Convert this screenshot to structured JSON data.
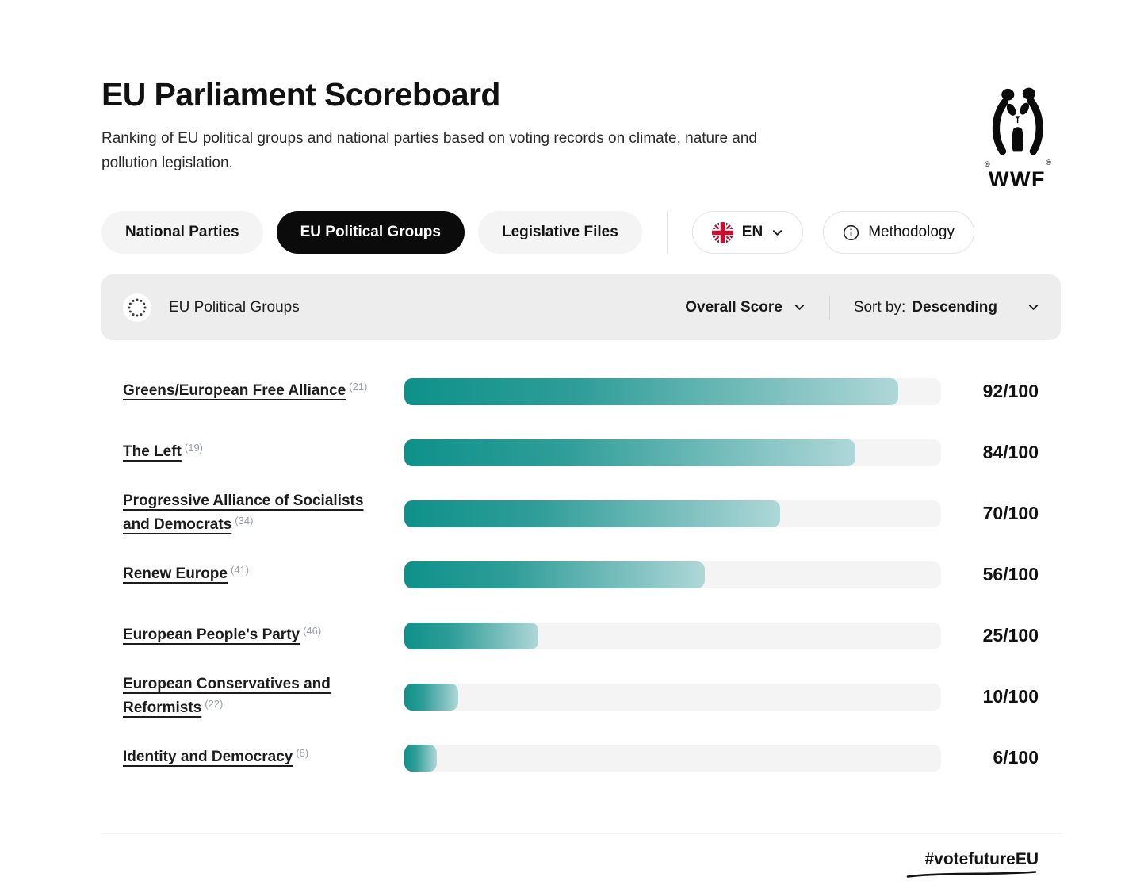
{
  "header": {
    "title": "EU Parliament Scoreboard",
    "subtitle": "Ranking of EU political groups and national parties based on voting records on climate, nature and pollution legislation.",
    "logo_text": "WWF",
    "logo_registered_mark": "®"
  },
  "tabs": [
    {
      "label": "National Parties",
      "active": false
    },
    {
      "label": "EU Political Groups",
      "active": true
    },
    {
      "label": "Legislative Files",
      "active": false
    }
  ],
  "controls": {
    "language_label": "EN",
    "methodology_label": "Methodology"
  },
  "filter_bar": {
    "title": "EU Political Groups",
    "score_selector": "Overall Score",
    "sort_label": "Sort by:",
    "sort_value": "Descending"
  },
  "rows": [
    {
      "name": "Greens/European Free Alliance",
      "count": "(21)",
      "score": 92,
      "score_label": "92/100"
    },
    {
      "name": "The Left",
      "count": "(19)",
      "score": 84,
      "score_label": "84/100"
    },
    {
      "name": "Progressive Alliance of Socialists and Democrats",
      "count": "(34)",
      "score": 70,
      "score_label": "70/100"
    },
    {
      "name": "Renew Europe",
      "count": "(41)",
      "score": 56,
      "score_label": "56/100"
    },
    {
      "name": "European People's Party",
      "count": "(46)",
      "score": 25,
      "score_label": "25/100"
    },
    {
      "name": "European Conservatives and Reformists",
      "count": "(22)",
      "score": 10,
      "score_label": "10/100"
    },
    {
      "name": "Identity and Democracy",
      "count": "(8)",
      "score": 6,
      "score_label": "6/100"
    }
  ],
  "chart_data": {
    "type": "bar",
    "title": "EU Parliament Scoreboard — EU Political Groups, Overall Score",
    "categories": [
      "Greens/European Free Alliance",
      "The Left",
      "Progressive Alliance of Socialists and Democrats",
      "Renew Europe",
      "European People's Party",
      "European Conservatives and Reformists",
      "Identity and Democracy"
    ],
    "values": [
      92,
      84,
      70,
      56,
      25,
      10,
      6
    ],
    "value_suffix": "/100",
    "xlabel": "",
    "ylabel": "",
    "xlim": [
      0,
      100
    ],
    "sort": "Descending",
    "grid": false,
    "orientation": "horizontal"
  },
  "footer": {
    "hashtag": "#votefutureEU"
  },
  "icons": {
    "logo": "wwf-panda-logo",
    "language_flag": "uk-flag-icon",
    "dropdown": "chevron-down-icon",
    "methodology": "info-icon",
    "filter": "eu-flag-icon"
  },
  "colors": {
    "accent_bar_start": "#0e918a",
    "accent_bar_end": "#afd7d8",
    "bar_track": "#f4f4f4",
    "active_tab_bg": "#0b0b0b",
    "inactive_tab_bg": "#f4f4f4",
    "filter_bar_bg": "#ededed"
  }
}
